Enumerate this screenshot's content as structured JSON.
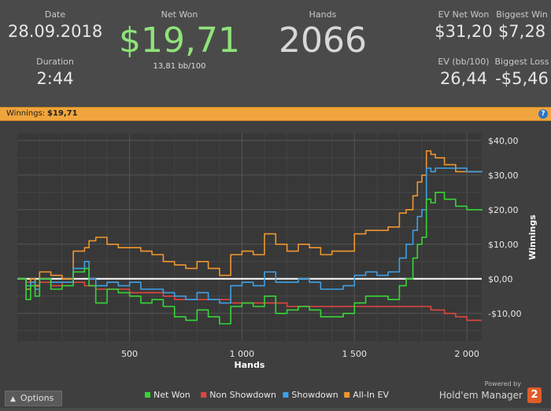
{
  "stats": {
    "date_label": "Date",
    "date_value": "28.09.2018",
    "duration_label": "Duration",
    "duration_value": "2:44",
    "netwon_label": "Net Won",
    "netwon_value": "$19,71",
    "bb_value": "13,81 bb/100",
    "hands_label": "Hands",
    "hands_value": "2066",
    "evnet_label": "EV Net Won",
    "evnet_value": "$31,20",
    "bigwin_label": "Biggest Win",
    "bigwin_value": "$7,28",
    "evbb_label": "EV (bb/100)",
    "evbb_value": "26,44",
    "bigloss_label": "Biggest Loss",
    "bigloss_value": "-$5,46"
  },
  "winnings_bar": {
    "label": "Winnings:",
    "value": "$19,71",
    "help": "?"
  },
  "options_label": "Options",
  "brand": {
    "powered_by": "Powered by",
    "name": "Hold'em Manager",
    "badge": "2"
  },
  "colors": {
    "net_won": "#36d636",
    "non_showdown": "#e0463e",
    "showdown": "#3fa0e6",
    "all_in_ev": "#f0962e",
    "zero_line": "#ffffff"
  },
  "chart_data": {
    "type": "line",
    "xlabel": "Hands",
    "ylabel": "Winnings",
    "xlim": [
      1,
      2066
    ],
    "ylim": [
      -18,
      42
    ],
    "x_ticks": [
      500,
      1000,
      1500,
      2000
    ],
    "x_tick_labels": [
      "500",
      "1 000",
      "1 500",
      "2 000"
    ],
    "y_ticks": [
      -10,
      0,
      10,
      20,
      30,
      40
    ],
    "y_tick_labels": [
      "-$10,00",
      "$0,00",
      "$10,00",
      "$20,00",
      "$30,00",
      "$40,00"
    ],
    "grid": true,
    "legend_position": "bottom",
    "x": [
      0,
      40,
      60,
      80,
      100,
      150,
      200,
      250,
      300,
      320,
      350,
      400,
      450,
      500,
      550,
      600,
      650,
      700,
      750,
      800,
      850,
      900,
      950,
      1000,
      1050,
      1100,
      1150,
      1200,
      1250,
      1300,
      1350,
      1400,
      1450,
      1500,
      1550,
      1600,
      1650,
      1700,
      1730,
      1760,
      1780,
      1800,
      1820,
      1840,
      1860,
      1900,
      1950,
      2000,
      2066
    ],
    "series": [
      {
        "name": "Net Won",
        "values": [
          0,
          -6,
          -2,
          -5,
          0,
          -3,
          -2,
          2,
          3,
          -2,
          -7,
          -3,
          -4,
          -5,
          -7,
          -6,
          -8,
          -11,
          -12,
          -9,
          -11,
          -13,
          -8,
          -7,
          -8,
          -5,
          -10,
          -9,
          -8,
          -9,
          -11,
          -11,
          -10,
          -7,
          -5,
          -5,
          -6,
          -2,
          0,
          6,
          10,
          12,
          23,
          22,
          25,
          23,
          21,
          20,
          19.71
        ]
      },
      {
        "name": "Non Showdown",
        "values": [
          0,
          -1,
          -1,
          -2,
          -1,
          -2,
          -1,
          -1,
          -2,
          -2,
          -3,
          -3,
          -3,
          -4,
          -4,
          -4,
          -5,
          -6,
          -6,
          -6,
          -6,
          -6,
          -7,
          -7,
          -7,
          -7,
          -7,
          -8,
          -8,
          -8,
          -8,
          -8,
          -8,
          -8,
          -8,
          -8,
          -8,
          -8,
          -8,
          -8,
          -8,
          -8,
          -8,
          -9,
          -9,
          -10,
          -11,
          -12,
          -12
        ]
      },
      {
        "name": "Showdown",
        "values": [
          0,
          -2,
          -1,
          -3,
          0,
          -1,
          -1,
          3,
          5,
          0,
          -2,
          -1,
          -2,
          -1,
          -3,
          -3,
          -4,
          -5,
          -6,
          -4,
          -6,
          -7,
          -2,
          -1,
          -2,
          2,
          -1,
          -1,
          0,
          -1,
          -3,
          -3,
          -2,
          1,
          2,
          1,
          2,
          6,
          10,
          14,
          18,
          20,
          32,
          31,
          32,
          32,
          32,
          31,
          31.2
        ]
      },
      {
        "name": "All-In EV",
        "values": [
          0,
          -3,
          0,
          -2,
          2,
          1,
          0,
          8,
          9,
          11,
          12,
          10,
          9,
          9,
          8,
          7,
          5,
          4,
          3,
          5,
          3,
          1,
          7,
          8,
          7,
          13,
          10,
          8,
          10,
          9,
          7,
          8,
          8,
          13,
          14,
          14,
          15,
          19,
          20,
          24,
          28,
          30,
          37,
          36,
          35,
          33,
          31,
          31,
          31.2
        ]
      }
    ]
  }
}
